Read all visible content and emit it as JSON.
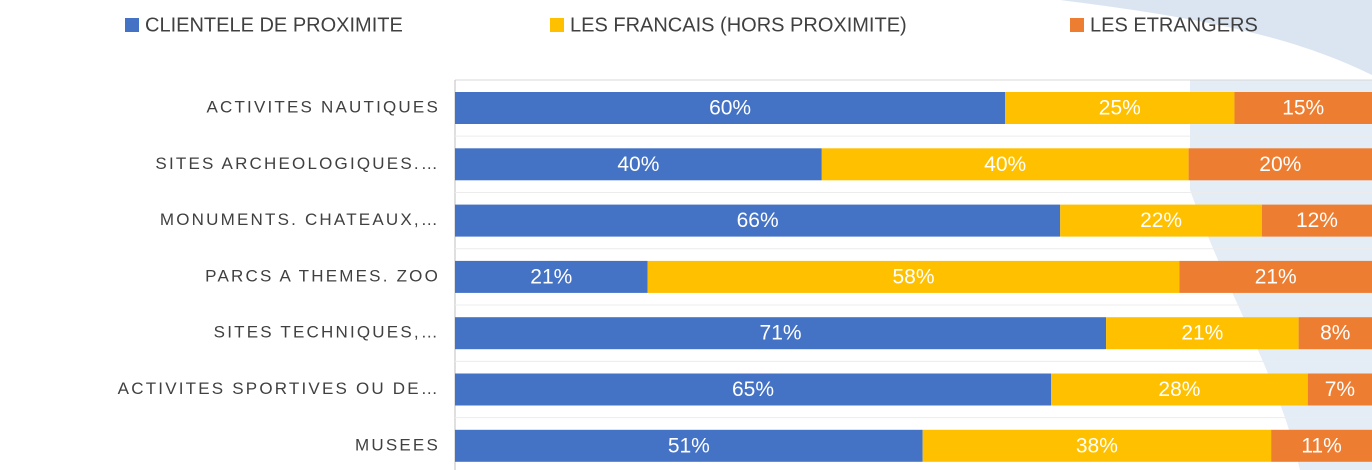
{
  "chart_data": {
    "type": "stacked-bar",
    "orientation": "horizontal",
    "categories": [
      "ACTIVITES NAUTIQUES",
      "SITES ARCHEOLOGIQUES.…",
      "MONUMENTS. CHATEAUX,…",
      "PARCS A THEMES. ZOO",
      "SITES TECHNIQUES,…",
      "ACTIVITES SPORTIVES OU DE…",
      "MUSEES"
    ],
    "series": [
      {
        "name": "CLIENTELE DE PROXIMITE",
        "color": "#4472c4",
        "values": [
          60,
          40,
          66,
          21,
          71,
          65,
          51
        ],
        "value_labels": [
          "60%",
          "40%",
          "66%",
          "21%",
          "71%",
          "65%",
          "51%"
        ]
      },
      {
        "name": "LES FRANCAIS (HORS PROXIMITE)",
        "color": "#ffc000",
        "values": [
          25,
          40,
          22,
          58,
          21,
          28,
          38
        ],
        "value_labels": [
          "25%",
          "40%",
          "22%",
          "58%",
          "21%",
          "28%",
          "38%"
        ]
      },
      {
        "name": "LES ETRANGERS",
        "color": "#ed7d31",
        "values": [
          15,
          20,
          12,
          21,
          8,
          7,
          11
        ],
        "value_labels": [
          "15%",
          "20%",
          "12%",
          "21%",
          "8%",
          "7%",
          "11%"
        ]
      }
    ],
    "xlim": [
      0,
      100
    ],
    "legend": "top"
  }
}
